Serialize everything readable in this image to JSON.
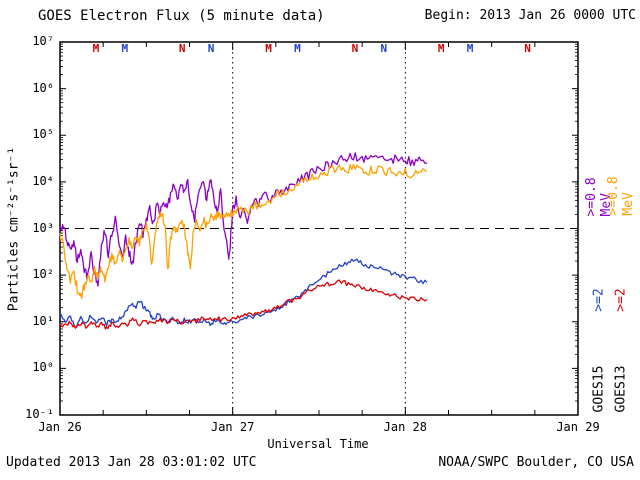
{
  "footer": {
    "updated": "Updated 2013 Jan 28 03:01:02 UTC",
    "credit": "NOAA/SWPC Boulder, CO USA"
  },
  "chart_data": {
    "type": "line",
    "title": "GOES Electron Flux (5 minute data)",
    "begin_label": "Begin: 2013 Jan 26 0000 UTC",
    "xlabel": "Universal Time",
    "ylabel": "Particles cm⁻²s⁻¹sr⁻¹",
    "x_ticks": [
      "Jan 26",
      "Jan 27",
      "Jan 28",
      "Jan 29"
    ],
    "y_ticks": [
      "10⁻¹",
      "10⁰",
      "10¹",
      "10²",
      "10³",
      "10⁴",
      "10⁵",
      "10⁶",
      "10⁷"
    ],
    "xlim_days": [
      0,
      3
    ],
    "ylim_log": [
      -1,
      7
    ],
    "yscale": "log",
    "grid": "dotted vertical lines at day boundaries",
    "threshold": {
      "value": 1000,
      "style": "dashed"
    },
    "legend_position": "right-rotated",
    "right_labels": [
      {
        "col": 1,
        "role": "e08",
        "sat": "GOES15",
        "text": ">=0.8 MeV",
        "color": "#8a00c4"
      },
      {
        "col": 2,
        "role": "e08",
        "sat": "GOES13",
        "text": ">=0.8 MeV",
        "color": "#ffa000"
      },
      {
        "col": 1,
        "role": "e2",
        "sat": "GOES15",
        "text": ">=2",
        "color": "#2040cc"
      },
      {
        "col": 2,
        "role": "e2",
        "sat": "GOES13",
        "text": ">=2",
        "color": "#dd0000"
      },
      {
        "col": 1,
        "role": "sat",
        "sat": "GOES15",
        "text": "GOES15",
        "color": "#000000"
      },
      {
        "col": 2,
        "role": "sat",
        "sat": "GOES13",
        "text": "GOES13",
        "color": "#000000"
      }
    ],
    "markers": [
      {
        "label": "M",
        "color": "#cc0000",
        "t": 0.208
      },
      {
        "label": "M",
        "color": "#2040cc",
        "t": 0.375
      },
      {
        "label": "N",
        "color": "#cc0000",
        "t": 0.708
      },
      {
        "label": "N",
        "color": "#2040cc",
        "t": 0.875
      },
      {
        "label": "M",
        "color": "#cc0000",
        "t": 1.208
      },
      {
        "label": "M",
        "color": "#2040cc",
        "t": 1.375
      },
      {
        "label": "N",
        "color": "#cc0000",
        "t": 1.708
      },
      {
        "label": "N",
        "color": "#2040cc",
        "t": 1.875
      },
      {
        "label": "M",
        "color": "#cc0000",
        "t": 2.208
      },
      {
        "label": "M",
        "color": "#2040cc",
        "t": 2.375
      },
      {
        "label": "N",
        "color": "#cc0000",
        "t": 2.708
      }
    ],
    "series": [
      {
        "name": "GOES15 >=0.8 MeV",
        "color": "#8a00c4",
        "noise": 0.1,
        "points": [
          [
            0,
            900
          ],
          [
            0.02,
            1200
          ],
          [
            0.04,
            600
          ],
          [
            0.06,
            300
          ],
          [
            0.08,
            550
          ],
          [
            0.1,
            200
          ],
          [
            0.12,
            380
          ],
          [
            0.14,
            140
          ],
          [
            0.16,
            90
          ],
          [
            0.18,
            260
          ],
          [
            0.2,
            110
          ],
          [
            0.22,
            60
          ],
          [
            0.24,
            420
          ],
          [
            0.26,
            900
          ],
          [
            0.28,
            280
          ],
          [
            0.3,
            750
          ],
          [
            0.32,
            1600
          ],
          [
            0.34,
            420
          ],
          [
            0.36,
            240
          ],
          [
            0.38,
            650
          ],
          [
            0.4,
            300
          ],
          [
            0.42,
            160
          ],
          [
            0.44,
            520
          ],
          [
            0.46,
            1300
          ],
          [
            0.48,
            800
          ],
          [
            0.5,
            1600
          ],
          [
            0.52,
            2600
          ],
          [
            0.54,
            1200
          ],
          [
            0.56,
            3200
          ],
          [
            0.58,
            2000
          ],
          [
            0.6,
            4200
          ],
          [
            0.62,
            2400
          ],
          [
            0.64,
            5200
          ],
          [
            0.66,
            8500
          ],
          [
            0.68,
            4000
          ],
          [
            0.7,
            10500
          ],
          [
            0.72,
            6000
          ],
          [
            0.74,
            9000
          ],
          [
            0.76,
            3000
          ],
          [
            0.78,
            1600
          ],
          [
            0.8,
            6000
          ],
          [
            0.83,
            9500
          ],
          [
            0.85,
            4200
          ],
          [
            0.87,
            11000
          ],
          [
            0.89,
            5000
          ],
          [
            0.91,
            2100
          ],
          [
            0.93,
            6500
          ],
          [
            0.95,
            1100
          ],
          [
            0.97,
            420
          ],
          [
            0.98,
            230
          ],
          [
            1.0,
            2600
          ],
          [
            1.02,
            4200
          ],
          [
            1.04,
            1600
          ],
          [
            1.06,
            3200
          ],
          [
            1.08,
            1300
          ],
          [
            1.1,
            2600
          ],
          [
            1.12,
            4200
          ],
          [
            1.15,
            3100
          ],
          [
            1.18,
            5200
          ],
          [
            1.21,
            4200
          ],
          [
            1.25,
            6300
          ],
          [
            1.29,
            5300
          ],
          [
            1.33,
            8200
          ],
          [
            1.38,
            10500
          ],
          [
            1.42,
            12500
          ],
          [
            1.46,
            15500
          ],
          [
            1.5,
            18500
          ],
          [
            1.54,
            22000
          ],
          [
            1.58,
            26000
          ],
          [
            1.63,
            30000
          ],
          [
            1.67,
            33000
          ],
          [
            1.71,
            35500
          ],
          [
            1.75,
            30500
          ],
          [
            1.79,
            38000
          ],
          [
            1.83,
            33500
          ],
          [
            1.88,
            30000
          ],
          [
            1.92,
            32500
          ],
          [
            1.96,
            28500
          ],
          [
            2.0,
            30500
          ],
          [
            2.04,
            26500
          ],
          [
            2.08,
            28500
          ],
          [
            2.125,
            25500
          ]
        ]
      },
      {
        "name": "GOES13 >=0.8 MeV",
        "color": "#ffa000",
        "noise": 0.1,
        "points": [
          [
            0,
            800
          ],
          [
            0.02,
            400
          ],
          [
            0.04,
            160
          ],
          [
            0.06,
            80
          ],
          [
            0.08,
            120
          ],
          [
            0.1,
            48
          ],
          [
            0.12,
            33
          ],
          [
            0.14,
            60
          ],
          [
            0.16,
            105
          ],
          [
            0.18,
            70
          ],
          [
            0.2,
            150
          ],
          [
            0.22,
            92
          ],
          [
            0.24,
            135
          ],
          [
            0.26,
            80
          ],
          [
            0.28,
            155
          ],
          [
            0.3,
            260
          ],
          [
            0.32,
            180
          ],
          [
            0.34,
            310
          ],
          [
            0.36,
            210
          ],
          [
            0.38,
            420
          ],
          [
            0.4,
            620
          ],
          [
            0.42,
            360
          ],
          [
            0.44,
            720
          ],
          [
            0.46,
            520
          ],
          [
            0.48,
            950
          ],
          [
            0.5,
            1250
          ],
          [
            0.52,
            620
          ],
          [
            0.53,
            160
          ],
          [
            0.55,
            820
          ],
          [
            0.57,
            1550
          ],
          [
            0.59,
            2100
          ],
          [
            0.61,
            950
          ],
          [
            0.625,
            115
          ],
          [
            0.64,
            620
          ],
          [
            0.66,
            1250
          ],
          [
            0.68,
            820
          ],
          [
            0.7,
            1550
          ],
          [
            0.72,
            1050
          ],
          [
            0.74,
            320
          ],
          [
            0.755,
            140
          ],
          [
            0.77,
            720
          ],
          [
            0.79,
            1250
          ],
          [
            0.81,
            950
          ],
          [
            0.83,
            1550
          ],
          [
            0.85,
            1150
          ],
          [
            0.87,
            1850
          ],
          [
            0.89,
            1350
          ],
          [
            0.91,
            2050
          ],
          [
            0.93,
            1550
          ],
          [
            0.95,
            2250
          ],
          [
            0.97,
            1850
          ],
          [
            1.0,
            2250
          ],
          [
            1.04,
            2550
          ],
          [
            1.08,
            2250
          ],
          [
            1.13,
            3100
          ],
          [
            1.17,
            3600
          ],
          [
            1.21,
            4100
          ],
          [
            1.25,
            5100
          ],
          [
            1.29,
            6100
          ],
          [
            1.33,
            7200
          ],
          [
            1.38,
            8600
          ],
          [
            1.42,
            10200
          ],
          [
            1.46,
            12200
          ],
          [
            1.5,
            14200
          ],
          [
            1.54,
            16200
          ],
          [
            1.58,
            18200
          ],
          [
            1.63,
            20200
          ],
          [
            1.67,
            19200
          ],
          [
            1.71,
            21200
          ],
          [
            1.75,
            18200
          ],
          [
            1.79,
            17200
          ],
          [
            1.83,
            18200
          ],
          [
            1.88,
            16200
          ],
          [
            1.92,
            17200
          ],
          [
            1.96,
            15200
          ],
          [
            2.0,
            16200
          ],
          [
            2.04,
            15200
          ],
          [
            2.08,
            16200
          ],
          [
            2.125,
            17000
          ]
        ]
      },
      {
        "name": "GOES15 >=2 MeV",
        "color": "#2040cc",
        "noise": 0.05,
        "points": [
          [
            0,
            15
          ],
          [
            0.03,
            10
          ],
          [
            0.06,
            13
          ],
          [
            0.09,
            8
          ],
          [
            0.12,
            12
          ],
          [
            0.15,
            9
          ],
          [
            0.18,
            14
          ],
          [
            0.21,
            10
          ],
          [
            0.24,
            12
          ],
          [
            0.27,
            9
          ],
          [
            0.3,
            11
          ],
          [
            0.33,
            10
          ],
          [
            0.36,
            13
          ],
          [
            0.39,
            18
          ],
          [
            0.42,
            25
          ],
          [
            0.44,
            20
          ],
          [
            0.46,
            28
          ],
          [
            0.48,
            22
          ],
          [
            0.5,
            18
          ],
          [
            0.52,
            15
          ],
          [
            0.54,
            12
          ],
          [
            0.57,
            14
          ],
          [
            0.6,
            11
          ],
          [
            0.63,
            10
          ],
          [
            0.66,
            12
          ],
          [
            0.69,
            9
          ],
          [
            0.72,
            11
          ],
          [
            0.75,
            10
          ],
          [
            0.78,
            12
          ],
          [
            0.81,
            10
          ],
          [
            0.84,
            11
          ],
          [
            0.87,
            9
          ],
          [
            0.9,
            11
          ],
          [
            0.93,
            10
          ],
          [
            0.96,
            9
          ],
          [
            1.0,
            10
          ],
          [
            1.04,
            11
          ],
          [
            1.08,
            12
          ],
          [
            1.13,
            13
          ],
          [
            1.17,
            14
          ],
          [
            1.21,
            16
          ],
          [
            1.25,
            18
          ],
          [
            1.29,
            22
          ],
          [
            1.33,
            28
          ],
          [
            1.38,
            35
          ],
          [
            1.42,
            45
          ],
          [
            1.46,
            60
          ],
          [
            1.5,
            80
          ],
          [
            1.54,
            100
          ],
          [
            1.58,
            130
          ],
          [
            1.63,
            160
          ],
          [
            1.67,
            190
          ],
          [
            1.71,
            210
          ],
          [
            1.75,
            180
          ],
          [
            1.79,
            150
          ],
          [
            1.83,
            160
          ],
          [
            1.88,
            130
          ],
          [
            1.92,
            110
          ],
          [
            1.96,
            100
          ],
          [
            2.0,
            90
          ],
          [
            2.04,
            85
          ],
          [
            2.08,
            75
          ],
          [
            2.125,
            70
          ]
        ]
      },
      {
        "name": "GOES13 >=2 MeV",
        "color": "#dd0000",
        "noise": 0.05,
        "points": [
          [
            0,
            9
          ],
          [
            0.03,
            8
          ],
          [
            0.06,
            10
          ],
          [
            0.09,
            7
          ],
          [
            0.12,
            9
          ],
          [
            0.15,
            8
          ],
          [
            0.18,
            10
          ],
          [
            0.21,
            8
          ],
          [
            0.24,
            9
          ],
          [
            0.27,
            7
          ],
          [
            0.3,
            9
          ],
          [
            0.33,
            8
          ],
          [
            0.36,
            10
          ],
          [
            0.39,
            9
          ],
          [
            0.42,
            11
          ],
          [
            0.46,
            9
          ],
          [
            0.5,
            10
          ],
          [
            0.54,
            9
          ],
          [
            0.58,
            11
          ],
          [
            0.62,
            10
          ],
          [
            0.66,
            12
          ],
          [
            0.7,
            10
          ],
          [
            0.74,
            11
          ],
          [
            0.78,
            10
          ],
          [
            0.82,
            12
          ],
          [
            0.86,
            11
          ],
          [
            0.9,
            12
          ],
          [
            0.94,
            11
          ],
          [
            1.0,
            12
          ],
          [
            1.04,
            13
          ],
          [
            1.08,
            14
          ],
          [
            1.13,
            15
          ],
          [
            1.17,
            16
          ],
          [
            1.21,
            18
          ],
          [
            1.25,
            20
          ],
          [
            1.29,
            24
          ],
          [
            1.33,
            28
          ],
          [
            1.38,
            33
          ],
          [
            1.42,
            40
          ],
          [
            1.46,
            48
          ],
          [
            1.5,
            55
          ],
          [
            1.54,
            62
          ],
          [
            1.58,
            70
          ],
          [
            1.63,
            72
          ],
          [
            1.67,
            65
          ],
          [
            1.71,
            60
          ],
          [
            1.75,
            55
          ],
          [
            1.79,
            50
          ],
          [
            1.83,
            45
          ],
          [
            1.88,
            40
          ],
          [
            1.92,
            38
          ],
          [
            1.96,
            35
          ],
          [
            2.0,
            33
          ],
          [
            2.04,
            32
          ],
          [
            2.08,
            30
          ],
          [
            2.125,
            30
          ]
        ]
      }
    ]
  }
}
